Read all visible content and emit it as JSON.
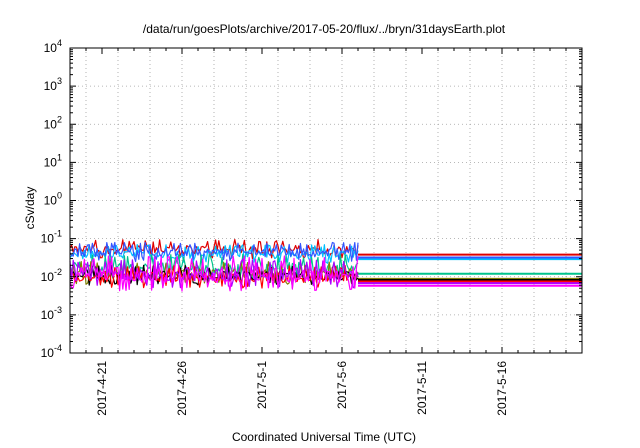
{
  "chart_data": {
    "type": "line",
    "title": "/data/run/goesPlots/archive/2017-05-20/flux/../bryn/31daysEarth.plot",
    "xlabel": "Coordinated Universal Time (UTC)",
    "ylabel": "cSv/day",
    "yscale": "log",
    "ylim": [
      0.0001,
      10000
    ],
    "ytick_exponents": [
      "-4",
      "-3",
      "-2",
      "-1",
      "0",
      "1",
      "2",
      "3",
      "4"
    ],
    "ytick_base": "10",
    "xlim": [
      "2017-04-19",
      "2017-05-21"
    ],
    "xticks": [
      {
        "date": "2017-04-21",
        "label": "2017-4-21"
      },
      {
        "date": "2017-04-26",
        "label": "2017-4-26"
      },
      {
        "date": "2017-05-01",
        "label": "2017-5-1"
      },
      {
        "date": "2017-05-06",
        "label": "2017-5-6"
      },
      {
        "date": "2017-05-11",
        "label": "2017-5-11"
      },
      {
        "date": "2017-05-16",
        "label": "2017-5-16"
      }
    ],
    "grid": true,
    "legend": "none",
    "data_start": "2017-04-19",
    "data_end": "2017-05-07",
    "constant_end": "2017-05-21",
    "series": [
      {
        "color": "#e00000",
        "min": 0.03,
        "max": 0.095,
        "constant": 0.038
      },
      {
        "color": "#00bfff",
        "min": 0.022,
        "max": 0.07,
        "constant": 0.029
      },
      {
        "color": "#3355ff",
        "min": 0.025,
        "max": 0.08,
        "constant": 0.032
      },
      {
        "color": "#00c48c",
        "min": 0.008,
        "max": 0.04,
        "constant": 0.012
      },
      {
        "color": "#808000",
        "min": 0.006,
        "max": 0.025,
        "constant": 0.0088
      },
      {
        "color": "#000000",
        "min": 0.006,
        "max": 0.02,
        "constant": 0.0082
      },
      {
        "color": "#ff0000",
        "min": 0.005,
        "max": 0.02,
        "constant": 0.0075
      },
      {
        "color": "#b000ff",
        "min": 0.005,
        "max": 0.03,
        "constant": 0.0068
      },
      {
        "color": "#ff00ff",
        "min": 0.004,
        "max": 0.035,
        "constant": 0.0058
      }
    ]
  }
}
